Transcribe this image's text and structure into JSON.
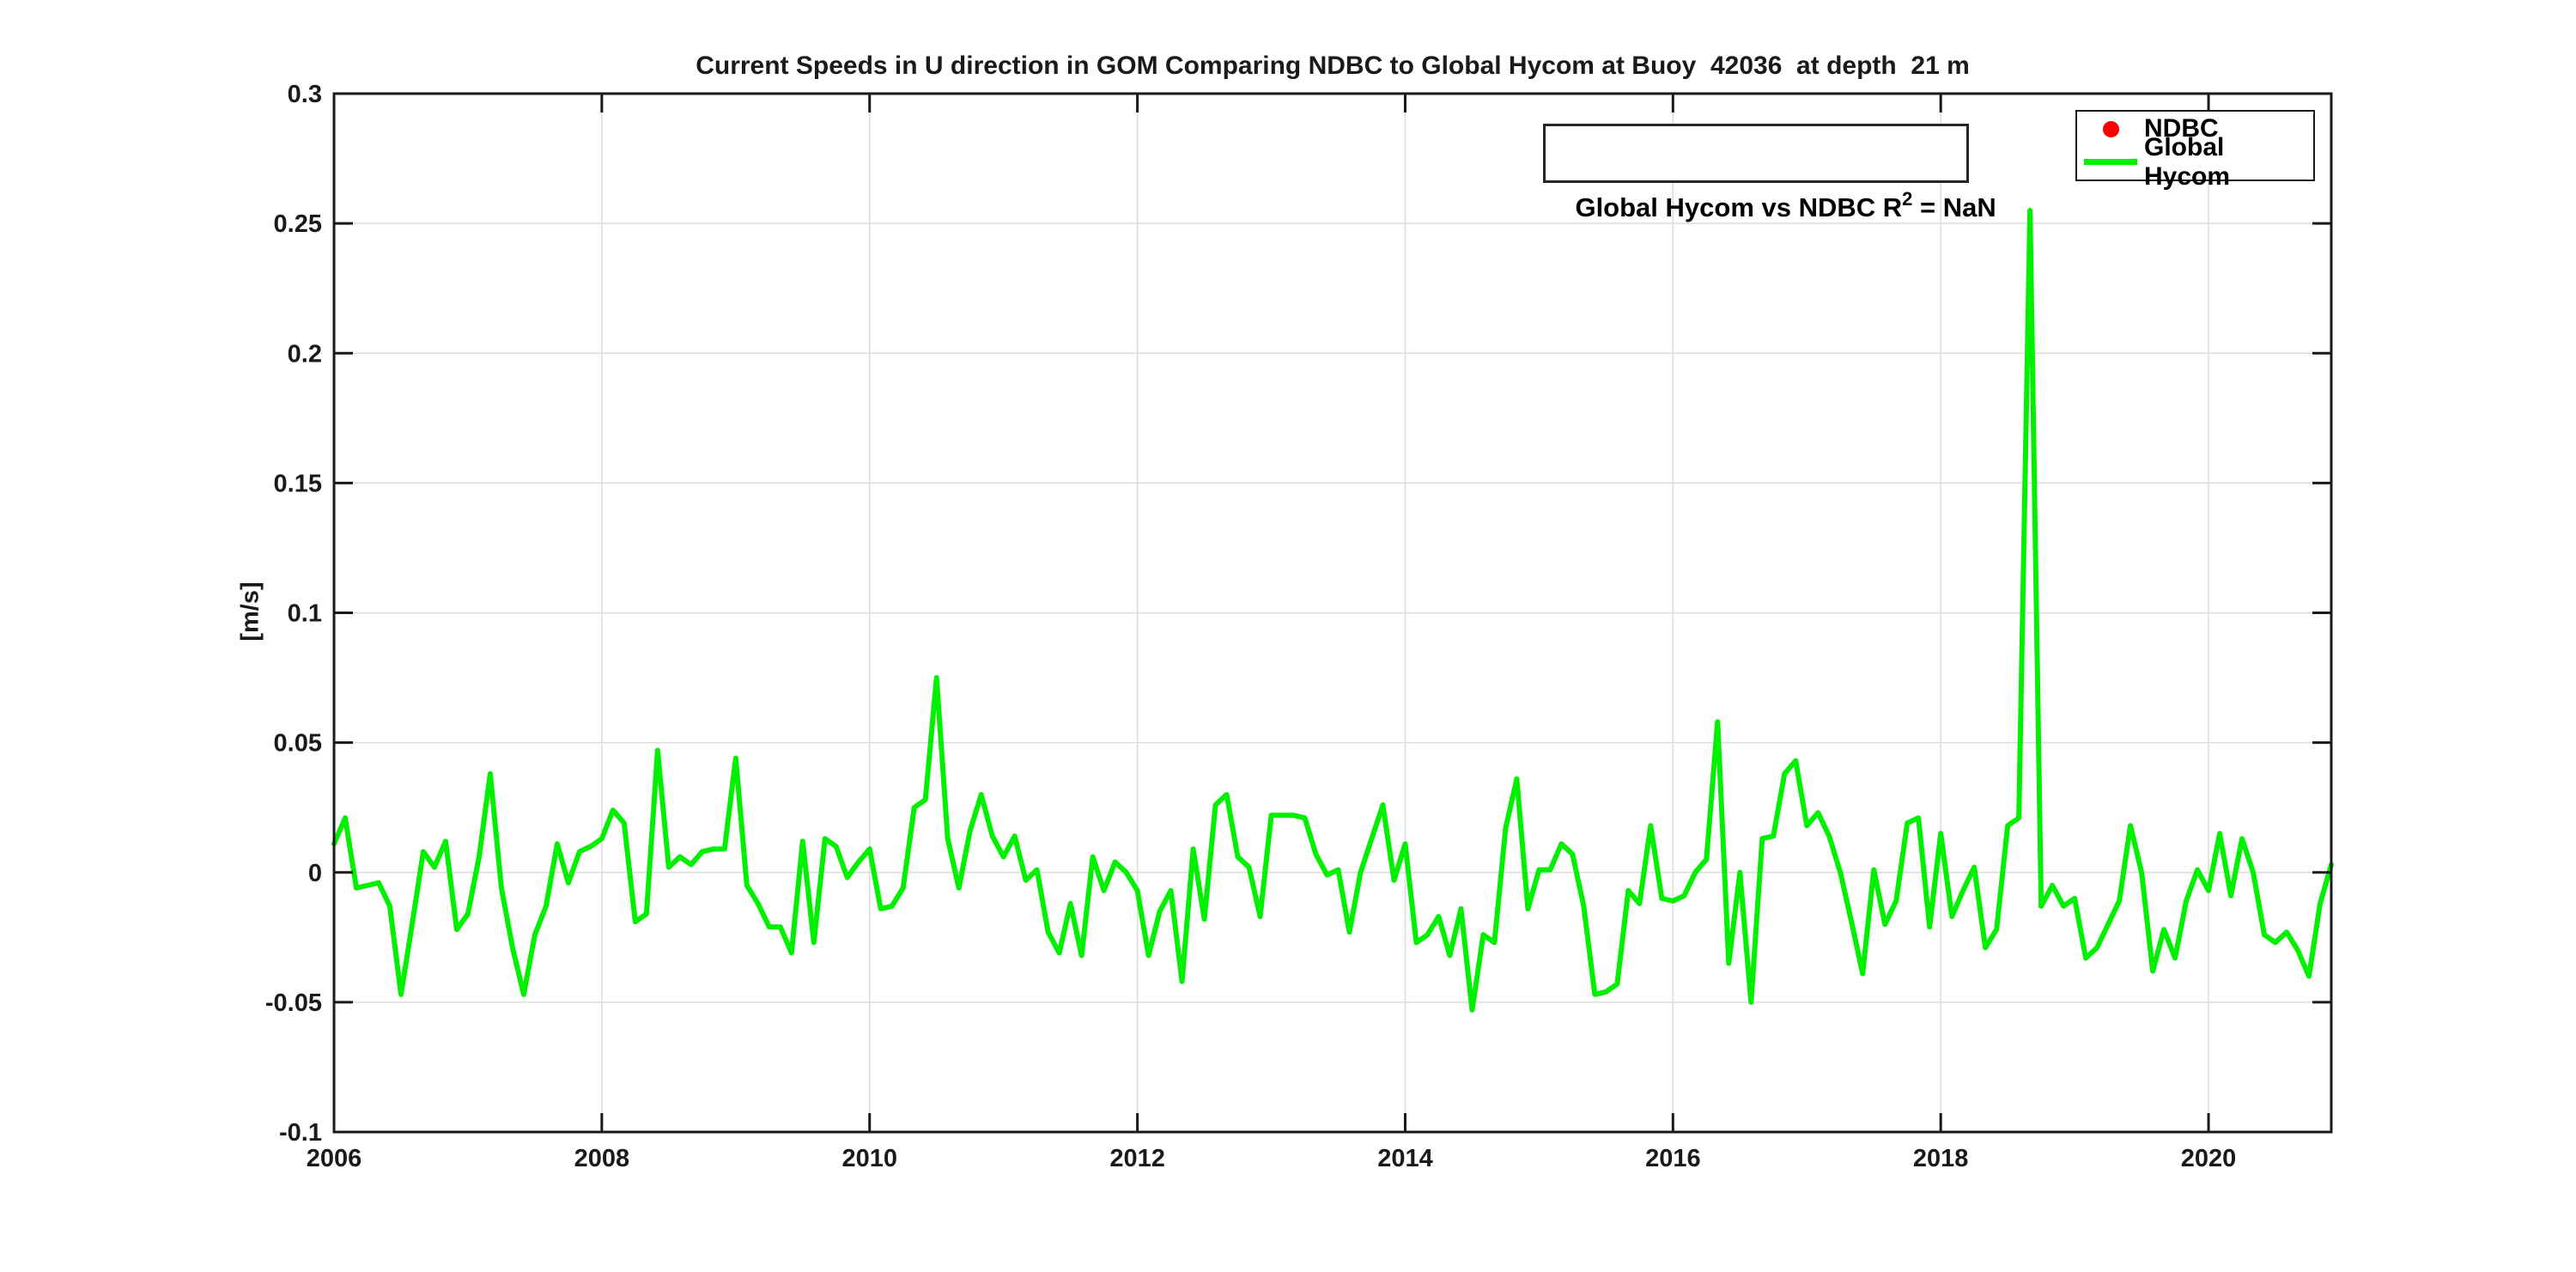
{
  "figure": {
    "title": "Current Speeds in U direction in GOM Comparing NDBC to Global Hycom at Buoy  42036  at depth  21 m",
    "ylabel": "[m/s]",
    "annotation": {
      "prefix": "Global Hycom vs NDBC R",
      "sup": "2",
      "suffix": " = NaN"
    },
    "legend": {
      "items": [
        {
          "label": "NDBC",
          "marker": "dot",
          "color": "#ff0000"
        },
        {
          "label": "Global Hycom",
          "marker": "line",
          "color": "#00f000"
        }
      ]
    }
  },
  "axes": {
    "xlim": [
      2006,
      2020.9167
    ],
    "ylim": [
      -0.1,
      0.3
    ],
    "grid": true,
    "x_ticks": [
      {
        "v": 2006,
        "label": "2006"
      },
      {
        "v": 2008,
        "label": "2008"
      },
      {
        "v": 2010,
        "label": "2010"
      },
      {
        "v": 2012,
        "label": "2012"
      },
      {
        "v": 2014,
        "label": "2014"
      },
      {
        "v": 2016,
        "label": "2016"
      },
      {
        "v": 2018,
        "label": "2018"
      },
      {
        "v": 2020,
        "label": "2020"
      }
    ],
    "y_ticks": [
      {
        "v": 0.3,
        "label": "0.3"
      },
      {
        "v": 0.25,
        "label": "0.25"
      },
      {
        "v": 0.2,
        "label": "0.2"
      },
      {
        "v": 0.15,
        "label": "0.15"
      },
      {
        "v": 0.1,
        "label": "0.1"
      },
      {
        "v": 0.05,
        "label": "0.05"
      },
      {
        "v": 0,
        "label": "0"
      },
      {
        "v": -0.05,
        "label": "-0.05"
      },
      {
        "v": -0.1,
        "label": "-0.1"
      }
    ],
    "colors": {
      "axis": "#1a1a1a",
      "grid": "#dcdcdc",
      "line": "#00f000",
      "ndbc": "#ff0000"
    }
  },
  "chart_data": {
    "type": "line",
    "title": "Current Speeds in U direction in GOM Comparing NDBC to Global Hycom at Buoy  42036  at depth  21 m",
    "xlabel": "",
    "ylabel": "[m/s]",
    "xlim": [
      2006,
      2020.9167
    ],
    "ylim": [
      -0.1,
      0.3
    ],
    "legend_position": "top-right",
    "grid": true,
    "x_start_year": 2006,
    "x_step_years": 0.083333,
    "r_squared_note": "Global Hycom vs NDBC R2 = NaN",
    "series": [
      {
        "name": "NDBC",
        "color": "#ff0000",
        "style": "scatter-dot",
        "values": []
      },
      {
        "name": "Global Hycom",
        "color": "#00f000",
        "style": "line",
        "values": [
          0.011,
          0.021,
          -0.006,
          -0.005,
          -0.004,
          -0.013,
          -0.047,
          -0.02,
          0.008,
          0.002,
          0.012,
          -0.022,
          -0.016,
          0.006,
          0.038,
          -0.006,
          -0.029,
          -0.047,
          -0.024,
          -0.013,
          0.011,
          -0.004,
          0.008,
          0.01,
          0.013,
          0.024,
          0.019,
          -0.019,
          -0.016,
          0.047,
          0.002,
          0.006,
          0.003,
          0.008,
          0.009,
          0.009,
          0.044,
          -0.005,
          -0.012,
          -0.021,
          -0.021,
          -0.031,
          0.012,
          -0.027,
          0.013,
          0.01,
          -0.002,
          0.004,
          0.009,
          -0.014,
          -0.013,
          -0.006,
          0.025,
          0.028,
          0.075,
          0.013,
          -0.006,
          0.016,
          0.03,
          0.014,
          0.006,
          0.014,
          -0.003,
          0.001,
          -0.023,
          -0.031,
          -0.012,
          -0.032,
          0.006,
          -0.007,
          0.004,
          0.0,
          -0.007,
          -0.032,
          -0.015,
          -0.007,
          -0.042,
          0.009,
          -0.018,
          0.026,
          0.03,
          0.006,
          0.002,
          -0.017,
          0.022,
          0.022,
          0.022,
          0.021,
          0.007,
          -0.001,
          0.001,
          -0.023,
          0.0,
          0.013,
          0.026,
          -0.003,
          0.011,
          -0.027,
          -0.024,
          -0.017,
          -0.032,
          -0.014,
          -0.053,
          -0.024,
          -0.027,
          0.017,
          0.036,
          -0.014,
          0.001,
          0.001,
          0.011,
          0.007,
          -0.013,
          -0.047,
          -0.046,
          -0.043,
          -0.007,
          -0.012,
          0.018,
          -0.01,
          -0.011,
          -0.009,
          0.0,
          0.005,
          0.058,
          -0.035,
          0.0,
          -0.05,
          0.013,
          0.014,
          0.038,
          0.043,
          0.018,
          0.023,
          0.014,
          0.0,
          -0.019,
          -0.039,
          0.001,
          -0.02,
          -0.011,
          0.019,
          0.021,
          -0.021,
          0.015,
          -0.017,
          -0.007,
          0.002,
          -0.029,
          -0.022,
          0.018,
          0.021,
          0.255,
          -0.013,
          -0.005,
          -0.013,
          -0.01,
          -0.033,
          -0.029,
          -0.02,
          -0.011,
          0.018,
          0.0,
          -0.038,
          -0.022,
          -0.033,
          -0.011,
          0.001,
          -0.007,
          0.015,
          -0.009,
          0.013,
          0.0,
          -0.024,
          -0.027,
          -0.023,
          -0.03,
          -0.04,
          -0.012,
          0.003
        ]
      }
    ]
  }
}
